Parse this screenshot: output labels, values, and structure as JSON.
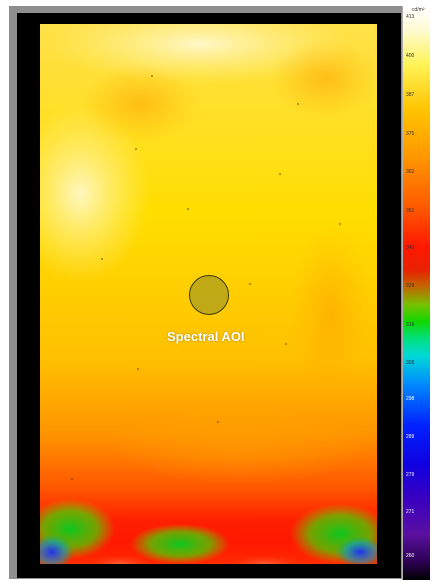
{
  "image": {
    "aoi_label": "Spectral AOI"
  },
  "scale": {
    "unit": "cd/m²",
    "ticks": [
      "413",
      "400",
      "387",
      "375",
      "363",
      "351",
      "340",
      "329",
      "316",
      "308",
      "298",
      "289",
      "279",
      "271",
      "260"
    ]
  },
  "colors": {
    "background": "#000000",
    "frame": "#8e8e8e",
    "hot": "#ffffff",
    "high": "#ffe400",
    "mid": "#ff2200",
    "low_green": "#00d800",
    "low_blue": "#0022ff",
    "min": "#000000"
  }
}
